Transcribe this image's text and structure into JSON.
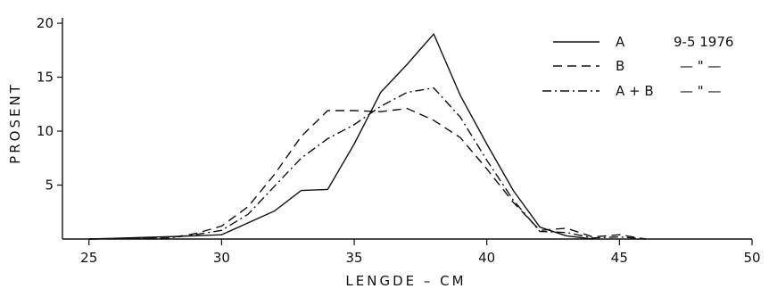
{
  "chart_data": {
    "type": "line",
    "title": "",
    "xlabel": "LENGDE  –  CM",
    "ylabel": "PROSENT",
    "xlim": [
      24,
      50
    ],
    "ylim": [
      0,
      20.5
    ],
    "x_ticks": [
      25,
      30,
      35,
      40,
      45,
      50
    ],
    "y_ticks": [
      5,
      10,
      15,
      20
    ],
    "grid": false,
    "legend_position": "top-right",
    "series": [
      {
        "name": "A",
        "dash": "solid",
        "note": "9-5  1976",
        "x": [
          25,
          29,
          30,
          31,
          32,
          33,
          34,
          35,
          36,
          37,
          38,
          39,
          40,
          41,
          42,
          43,
          44
        ],
        "y": [
          0,
          0.3,
          0.4,
          1.5,
          2.6,
          4.5,
          4.6,
          8.8,
          13.6,
          16.2,
          19.0,
          13.3,
          8.8,
          4.5,
          1.1,
          0.3,
          0
        ]
      },
      {
        "name": "B",
        "dash": "dashed",
        "note": "– \" –",
        "x": [
          25,
          28,
          29,
          30,
          31,
          32,
          33,
          34,
          35,
          36,
          37,
          38,
          39,
          40,
          41,
          42,
          43,
          44,
          45,
          46
        ],
        "y": [
          0,
          0.1,
          0.5,
          1.2,
          3.0,
          6.0,
          9.5,
          11.9,
          11.9,
          11.8,
          12.1,
          11.0,
          9.4,
          6.5,
          3.4,
          0.8,
          1.0,
          0.2,
          0.4,
          0
        ]
      },
      {
        "name": "A + B",
        "dash": "dashdot",
        "note": "– \" –",
        "x": [
          25,
          28,
          29,
          30,
          31,
          32,
          33,
          34,
          35,
          36,
          37,
          38,
          39,
          40,
          41,
          42,
          43,
          44,
          45,
          46
        ],
        "y": [
          0,
          0.1,
          0.4,
          0.8,
          2.3,
          4.9,
          7.5,
          9.3,
          10.6,
          12.3,
          13.6,
          14.0,
          11.3,
          7.3,
          3.6,
          0.7,
          0.6,
          0.1,
          0.2,
          0
        ]
      }
    ]
  },
  "legend": {
    "date_label": "9-5  1976",
    "ditto_label_b": "— \" —",
    "ditto_label_ab": "— \" —"
  },
  "colors": {
    "line": "#111111",
    "background": "#ffffff"
  }
}
